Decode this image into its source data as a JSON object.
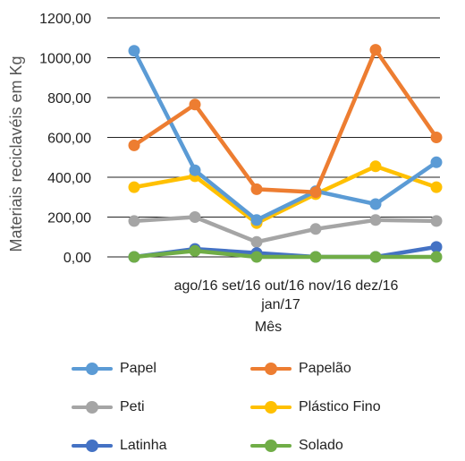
{
  "chart_data": {
    "type": "line",
    "ylabel": "Materiais reciclavéis em Kg",
    "xlabel": "Mês",
    "categories": [
      "ago/16",
      "set/16",
      "out/16",
      "nov/16",
      "dez/16",
      "jan/17"
    ],
    "x_tick_text_line1": "ago/16 set/16 out/16 nov/16 dez/16",
    "x_tick_text_line2": "jan/17",
    "ylim": [
      0,
      1200
    ],
    "y_ticks": [
      0,
      200,
      400,
      600,
      800,
      1000,
      1200
    ],
    "y_tick_labels": [
      "0,00",
      "200,00",
      "400,00",
      "600,00",
      "800,00",
      "1000,00",
      "1200,00"
    ],
    "grid": true,
    "legend_position": "bottom",
    "series": [
      {
        "name": "Papel",
        "color": "#5b9bd5",
        "values": [
          1035,
          435,
          185,
          330,
          265,
          475
        ]
      },
      {
        "name": "Papelão",
        "color": "#ed7d31",
        "values": [
          560,
          765,
          340,
          325,
          1040,
          600
        ]
      },
      {
        "name": "Peti",
        "color": "#a5a5a5",
        "values": [
          180,
          200,
          75,
          140,
          185,
          180
        ]
      },
      {
        "name": "Plástico Fino",
        "color": "#ffc000",
        "values": [
          350,
          405,
          170,
          315,
          455,
          350
        ]
      },
      {
        "name": "Latinha",
        "color": "#4472c4",
        "values": [
          0,
          40,
          20,
          0,
          0,
          50
        ]
      },
      {
        "name": "Solado",
        "color": "#70ad47",
        "values": [
          0,
          30,
          0,
          0,
          0,
          0
        ]
      }
    ]
  }
}
